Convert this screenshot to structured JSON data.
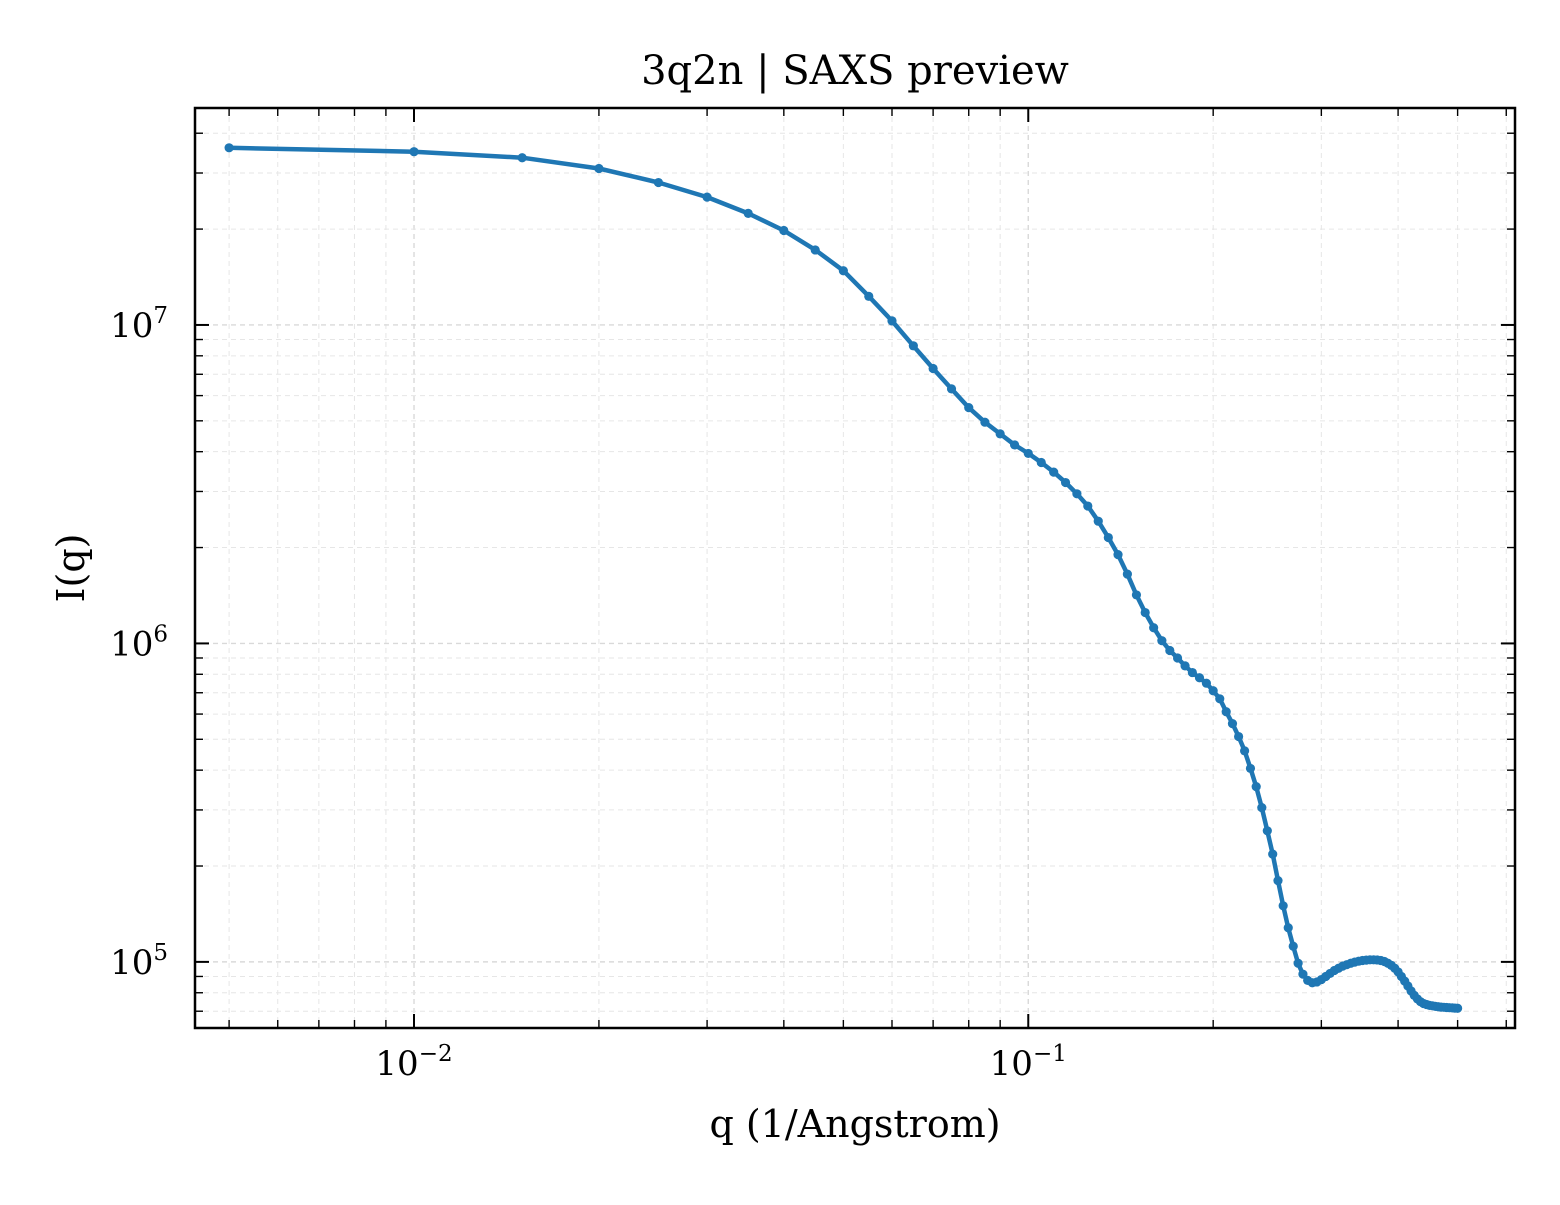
{
  "chart_data": {
    "type": "line",
    "title": "3q2n | SAXS preview",
    "xlabel": "q (1/Angstrom)",
    "ylabel": "I(q)",
    "xscale": "log",
    "yscale": "log",
    "xlim": [
      0.0044,
      0.62
    ],
    "ylim": [
      62000,
      48000000
    ],
    "grid": true,
    "x_ticks": [
      {
        "value": 0.01,
        "base": "10",
        "exp": "−2"
      },
      {
        "value": 0.1,
        "base": "10",
        "exp": "−1"
      }
    ],
    "y_ticks": [
      {
        "value": 100000,
        "base": "10",
        "exp": "5"
      },
      {
        "value": 1000000,
        "base": "10",
        "exp": "6"
      },
      {
        "value": 10000000,
        "base": "10",
        "exp": "7"
      }
    ],
    "series": [
      {
        "color": "#1f77b4",
        "x": [
          0.005,
          0.01,
          0.015,
          0.02,
          0.025,
          0.03,
          0.035,
          0.04,
          0.045,
          0.05,
          0.055,
          0.06,
          0.065,
          0.07,
          0.075,
          0.08,
          0.085,
          0.09,
          0.095,
          0.1,
          0.105,
          0.11,
          0.115,
          0.12,
          0.125,
          0.13,
          0.135,
          0.14,
          0.145,
          0.15,
          0.155,
          0.16,
          0.165,
          0.17,
          0.175,
          0.18,
          0.185,
          0.19,
          0.195,
          0.2,
          0.205,
          0.21,
          0.215,
          0.22,
          0.225,
          0.23,
          0.235,
          0.24,
          0.245,
          0.25,
          0.255,
          0.26,
          0.265,
          0.27,
          0.275,
          0.28,
          0.285,
          0.29,
          0.295,
          0.3,
          0.305,
          0.31,
          0.315,
          0.32,
          0.325,
          0.33,
          0.335,
          0.34,
          0.345,
          0.35,
          0.355,
          0.36,
          0.365,
          0.37,
          0.375,
          0.38,
          0.385,
          0.39,
          0.395,
          0.4,
          0.405,
          0.41,
          0.415,
          0.42,
          0.425,
          0.43,
          0.435,
          0.44,
          0.445,
          0.45,
          0.455,
          0.46,
          0.465,
          0.47,
          0.475,
          0.48,
          0.485,
          0.49,
          0.495,
          0.5
        ],
        "y": [
          36000000,
          35000000,
          33500000,
          31000000,
          28000000,
          25200000,
          22400000,
          19800000,
          17200000,
          14800000,
          12300000,
          10300000,
          8600000,
          7300000,
          6300000,
          5500000,
          4950000,
          4550000,
          4200000,
          3950000,
          3700000,
          3450000,
          3200000,
          2950000,
          2700000,
          2420000,
          2150000,
          1900000,
          1650000,
          1420000,
          1250000,
          1120000,
          1020000,
          950000,
          900000,
          850000,
          810000,
          780000,
          750000,
          710000,
          670000,
          610000,
          560000,
          510000,
          460000,
          405000,
          355000,
          305000,
          258000,
          218000,
          180000,
          150000,
          128000,
          112000,
          99000,
          91500,
          87500,
          86000,
          86500,
          88000,
          90000,
          92000,
          94000,
          95500,
          97000,
          98000,
          99000,
          99800,
          100500,
          101000,
          101300,
          101500,
          101500,
          101400,
          101000,
          100300,
          99000,
          97500,
          95500,
          93000,
          90000,
          87000,
          84000,
          81000,
          78500,
          76500,
          75000,
          74000,
          73500,
          73000,
          72800,
          72500,
          72300,
          72100,
          72000,
          71900,
          71800,
          71700,
          71600,
          71500
        ]
      }
    ]
  }
}
